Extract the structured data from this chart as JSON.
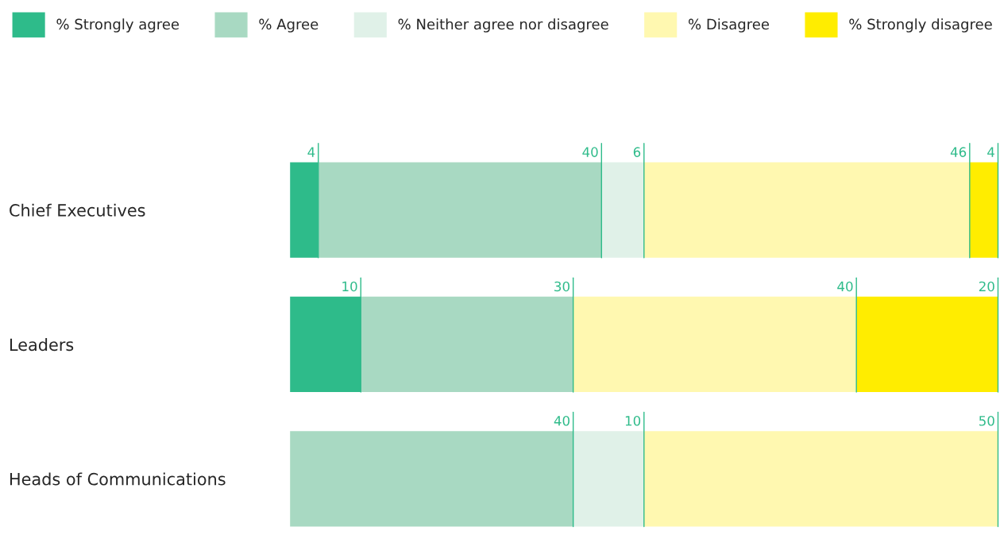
{
  "chart_data": {
    "type": "bar",
    "orientation": "horizontal",
    "stacked": true,
    "legend": "top",
    "grid": false,
    "tick_labels": "y",
    "xlim": [
      0,
      100
    ],
    "categories": [
      "Chief Executives",
      "Leaders",
      "Heads of Communications"
    ],
    "series": [
      {
        "name": "% Strongly agree",
        "color": "#2ebb8a",
        "values": [
          4,
          10,
          0
        ],
        "value_labels": [
          "4",
          "10",
          null
        ]
      },
      {
        "name": "% Agree",
        "color": "#a8d9c2",
        "values": [
          40,
          30,
          40
        ],
        "value_labels": [
          "40",
          "30",
          "40"
        ]
      },
      {
        "name": "% Neither agree nor disagree",
        "color": "#e0f1e8",
        "values": [
          6,
          0,
          10
        ],
        "value_labels": [
          "6",
          null,
          "10"
        ]
      },
      {
        "name": "% Disagree",
        "color": "#fff8b0",
        "values": [
          46,
          40,
          50
        ],
        "value_labels": [
          "46",
          "40",
          "50"
        ]
      },
      {
        "name": "% Strongly disagree",
        "color": "#ffed00",
        "values": [
          4,
          20,
          0
        ],
        "value_labels": [
          "4",
          "20",
          null
        ]
      }
    ]
  }
}
